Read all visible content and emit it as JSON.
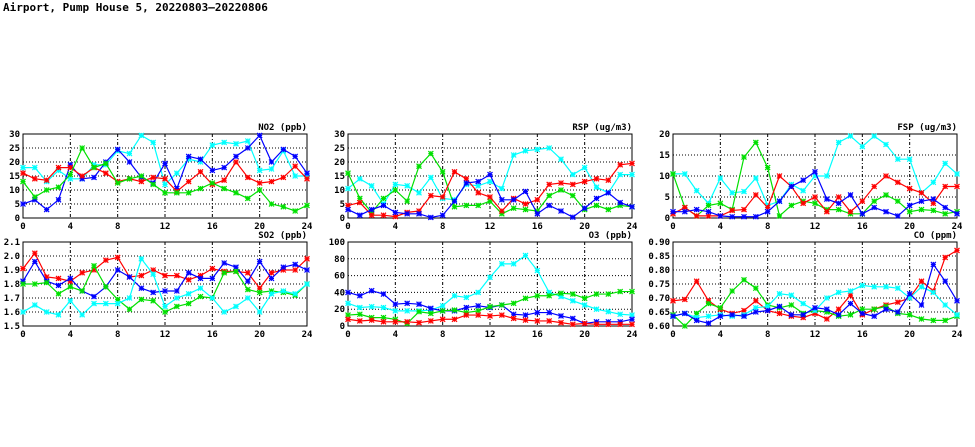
{
  "page_title": "Airport, Pump House 5, 20220803–20220806",
  "colors": {
    "red": "#ff0000",
    "green": "#00e000",
    "blue": "#0000ff",
    "cyan": "#00ffff"
  },
  "chart_data": [
    {
      "type": "line",
      "title": "NO2 (ppb)",
      "xlim": [
        0,
        24
      ],
      "xticks": [
        "0",
        "4",
        "8",
        "12",
        "16",
        "20",
        "24"
      ],
      "ylim": [
        0,
        30
      ],
      "yticks": [
        "0",
        "5",
        "10",
        "15",
        "20",
        "25",
        "30"
      ],
      "grid": true,
      "x": [
        0,
        1,
        2,
        3,
        4,
        5,
        6,
        7,
        8,
        9,
        10,
        11,
        12,
        13,
        14,
        15,
        16,
        17,
        18,
        19,
        20,
        21,
        22,
        23,
        24
      ],
      "series": [
        {
          "name": "cyan",
          "values": [
            18,
            18,
            13,
            17,
            14,
            14,
            19,
            19,
            24,
            23,
            29.5,
            27,
            12,
            16,
            21,
            20,
            26,
            27,
            26.5,
            27.5,
            17,
            17.5,
            24,
            15,
            15
          ]
        },
        {
          "name": "blue",
          "values": [
            5,
            6.5,
            3,
            6.5,
            19,
            14,
            14.5,
            20,
            24.5,
            20,
            14.5,
            12.5,
            19.5,
            10.5,
            22,
            21,
            17,
            18,
            22,
            25,
            29.5,
            20,
            24.5,
            22,
            16
          ]
        },
        {
          "name": "red",
          "values": [
            16,
            14,
            13.5,
            18,
            18,
            15,
            18,
            16,
            13,
            14,
            13,
            14.5,
            14,
            9.5,
            13,
            16.5,
            12,
            13.5,
            20,
            14.5,
            12.5,
            13,
            14.5,
            18.5,
            14
          ]
        },
        {
          "name": "green",
          "values": [
            13,
            7.5,
            10,
            11,
            15.5,
            25,
            18,
            19.5,
            12.5,
            14,
            15,
            12,
            9,
            9,
            9,
            10.5,
            12.5,
            10.5,
            9,
            7,
            10,
            5,
            4,
            2.5,
            4.5
          ]
        }
      ]
    },
    {
      "type": "line",
      "title": "RSP (ug/m3)",
      "xlim": [
        0,
        24
      ],
      "xticks": [
        "0",
        "4",
        "8",
        "12",
        "16",
        "20",
        "24"
      ],
      "ylim": [
        0,
        30
      ],
      "yticks": [
        "0",
        "5",
        "10",
        "15",
        "20",
        "25",
        "30"
      ],
      "grid": true,
      "x": [
        0,
        1,
        2,
        3,
        4,
        5,
        6,
        7,
        8,
        9,
        10,
        11,
        12,
        13,
        14,
        15,
        16,
        17,
        18,
        19,
        20,
        21,
        22,
        23,
        24
      ],
      "series": [
        {
          "name": "cyan",
          "values": [
            10.5,
            14,
            11.5,
            5,
            12,
            11.5,
            9,
            14.5,
            7,
            6.5,
            12,
            11.5,
            13,
            10.5,
            22.5,
            24,
            24.5,
            25,
            21,
            15.5,
            18,
            11,
            9,
            15.5,
            15.5
          ]
        },
        {
          "name": "green",
          "values": [
            16,
            7,
            2,
            7,
            10,
            6,
            18.5,
            23,
            16.5,
            4,
            4.5,
            4.5,
            6,
            1.5,
            3.5,
            3,
            2.5,
            8,
            10,
            8,
            3,
            4.5,
            3,
            4.5,
            4
          ]
        },
        {
          "name": "red",
          "values": [
            4.5,
            5.5,
            1,
            1,
            0.5,
            2,
            2.5,
            8,
            7.5,
            16.5,
            14,
            9,
            7.5,
            2.5,
            7,
            5,
            6.5,
            12,
            12.5,
            12,
            13,
            14,
            13.5,
            19,
            19.5
          ]
        },
        {
          "name": "blue",
          "values": [
            3,
            1,
            3,
            4.5,
            2,
            1.5,
            1.5,
            0.2,
            1,
            6,
            12.5,
            13,
            15.5,
            6.5,
            6.5,
            9.5,
            1.5,
            4.5,
            2.5,
            0.3,
            3.5,
            7,
            9,
            5.5,
            4
          ]
        }
      ]
    },
    {
      "type": "line",
      "title": "FSP (ug/m3)",
      "xlim": [
        0,
        24
      ],
      "xticks": [
        "0",
        "4",
        "8",
        "12",
        "16",
        "20",
        "24"
      ],
      "ylim": [
        0,
        20
      ],
      "yticks": [
        "0",
        "5",
        "10",
        "15",
        "20"
      ],
      "grid": true,
      "x": [
        0,
        1,
        2,
        3,
        4,
        5,
        6,
        7,
        8,
        9,
        10,
        11,
        12,
        13,
        14,
        15,
        16,
        17,
        18,
        19,
        20,
        21,
        22,
        23,
        24
      ],
      "series": [
        {
          "name": "cyan",
          "values": [
            10.5,
            10.5,
            6.5,
            3.5,
            9.5,
            6,
            6.3,
            9.5,
            3,
            4,
            8,
            6.5,
            10,
            10,
            18,
            19.5,
            17,
            19.5,
            17.5,
            14,
            14,
            6,
            8.5,
            13,
            10.5
          ]
        },
        {
          "name": "green",
          "values": [
            10.5,
            2.5,
            0.5,
            3,
            3.5,
            2,
            14.5,
            18,
            12,
            0.5,
            3,
            4,
            3.5,
            2,
            2,
            1,
            1,
            4,
            5.5,
            4,
            1.5,
            2,
            1.8,
            1,
            1.5
          ]
        },
        {
          "name": "red",
          "values": [
            1,
            2.5,
            0.5,
            0.5,
            0.5,
            1.8,
            2,
            5.5,
            2.5,
            10,
            7.5,
            3.5,
            5,
            1.5,
            5,
            1.5,
            4,
            7.5,
            10,
            8.5,
            7,
            6,
            3.5,
            7.5,
            7.5
          ]
        },
        {
          "name": "blue",
          "values": [
            1.5,
            1.5,
            2,
            1.5,
            0.5,
            0.3,
            0.3,
            0.3,
            1.5,
            4,
            7.5,
            9,
            11,
            4.5,
            3.5,
            5.5,
            1,
            2.5,
            1.5,
            0.5,
            3,
            4,
            4.5,
            2.5,
            1
          ]
        }
      ]
    },
    {
      "type": "line",
      "title": "SO2 (ppb)",
      "xlim": [
        0,
        24
      ],
      "xticks": [
        "0",
        "4",
        "8",
        "12",
        "16",
        "20",
        "24"
      ],
      "ylim": [
        1.5,
        2.1
      ],
      "yticks": [
        "1.5",
        "1.6",
        "1.7",
        "1.8",
        "1.9",
        "2.0",
        "2.1"
      ],
      "grid": true,
      "x": [
        0,
        1,
        2,
        3,
        4,
        5,
        6,
        7,
        8,
        9,
        10,
        11,
        12,
        13,
        14,
        15,
        16,
        17,
        18,
        19,
        20,
        21,
        22,
        23,
        24
      ],
      "series": [
        {
          "name": "red",
          "values": [
            1.91,
            2.02,
            1.85,
            1.84,
            1.82,
            1.88,
            1.9,
            1.97,
            1.99,
            1.85,
            1.86,
            1.9,
            1.86,
            1.86,
            1.83,
            1.86,
            1.91,
            1.89,
            1.89,
            1.88,
            1.77,
            1.88,
            1.9,
            1.9,
            1.98
          ]
        },
        {
          "name": "blue",
          "values": [
            1.82,
            1.96,
            1.82,
            1.79,
            1.84,
            1.75,
            1.71,
            1.78,
            1.9,
            1.85,
            1.77,
            1.74,
            1.75,
            1.75,
            1.88,
            1.84,
            1.84,
            1.95,
            1.92,
            1.82,
            1.96,
            1.84,
            1.92,
            1.94,
            1.9
          ]
        },
        {
          "name": "green",
          "values": [
            1.8,
            1.8,
            1.81,
            1.73,
            1.78,
            1.75,
            1.93,
            1.78,
            1.69,
            1.62,
            1.69,
            1.68,
            1.6,
            1.64,
            1.66,
            1.71,
            1.7,
            1.88,
            1.89,
            1.76,
            1.74,
            1.75,
            1.74,
            1.72,
            1.8
          ]
        },
        {
          "name": "cyan",
          "values": [
            1.6,
            1.65,
            1.6,
            1.58,
            1.68,
            1.58,
            1.66,
            1.66,
            1.66,
            1.7,
            1.98,
            1.87,
            1.64,
            1.7,
            1.73,
            1.77,
            1.7,
            1.6,
            1.64,
            1.7,
            1.6,
            1.73,
            1.75,
            1.73,
            1.8
          ]
        }
      ]
    },
    {
      "type": "line",
      "title": "O3 (ppb)",
      "xlim": [
        0,
        24
      ],
      "xticks": [
        "0",
        "4",
        "8",
        "12",
        "16",
        "20",
        "24"
      ],
      "ylim": [
        0,
        100
      ],
      "yticks": [
        "0",
        "20",
        "40",
        "60",
        "80",
        "100"
      ],
      "grid": true,
      "x": [
        0,
        1,
        2,
        3,
        4,
        5,
        6,
        7,
        8,
        9,
        10,
        11,
        12,
        13,
        14,
        15,
        16,
        17,
        18,
        19,
        20,
        21,
        22,
        23,
        24
      ],
      "series": [
        {
          "name": "cyan",
          "values": [
            27,
            22,
            23,
            22,
            18,
            18,
            18,
            19,
            24,
            36,
            34,
            40,
            58,
            74,
            74,
            84,
            66,
            40,
            35,
            30,
            25,
            20,
            17,
            14,
            13
          ]
        },
        {
          "name": "blue",
          "values": [
            40,
            36,
            42,
            38,
            26,
            27,
            26,
            21,
            18,
            18,
            22,
            24,
            22,
            25,
            14,
            13,
            16,
            16,
            12,
            9,
            3,
            5,
            5,
            5,
            8
          ]
        },
        {
          "name": "green",
          "values": [
            13,
            14,
            10,
            10,
            8,
            3,
            17,
            15,
            18,
            19,
            16,
            18,
            23,
            25,
            27,
            33,
            36,
            36,
            39,
            38,
            33,
            38,
            38,
            41,
            41
          ]
        },
        {
          "name": "red",
          "values": [
            8,
            6,
            7,
            5,
            5,
            5,
            4,
            6,
            8,
            8,
            13,
            13,
            12,
            13,
            9,
            7,
            6,
            6,
            4,
            2,
            3,
            2,
            2,
            2,
            2
          ]
        }
      ]
    },
    {
      "type": "line",
      "title": "CO (ppm)",
      "xlim": [
        0,
        24
      ],
      "xticks": [
        "0",
        "4",
        "8",
        "12",
        "16",
        "20",
        "24"
      ],
      "ylim": [
        0.6,
        0.9
      ],
      "yticks": [
        "0.60",
        "0.65",
        "0.70",
        "0.75",
        "0.80",
        "0.85",
        "0.90"
      ],
      "grid": true,
      "x": [
        0,
        1,
        2,
        3,
        4,
        5,
        6,
        7,
        8,
        9,
        10,
        11,
        12,
        13,
        14,
        15,
        16,
        17,
        18,
        19,
        20,
        21,
        22,
        23,
        24
      ],
      "series": [
        {
          "name": "red",
          "values": [
            0.69,
            0.695,
            0.76,
            0.69,
            0.66,
            0.645,
            0.655,
            0.69,
            0.655,
            0.645,
            0.635,
            0.63,
            0.645,
            0.625,
            0.66,
            0.71,
            0.64,
            0.66,
            0.675,
            0.685,
            0.7,
            0.76,
            0.725,
            0.845,
            0.87
          ]
        },
        {
          "name": "green",
          "values": [
            0.64,
            0.6,
            0.645,
            0.68,
            0.665,
            0.725,
            0.765,
            0.735,
            0.675,
            0.665,
            0.675,
            0.645,
            0.655,
            0.65,
            0.635,
            0.64,
            0.66,
            0.66,
            0.67,
            0.645,
            0.64,
            0.625,
            0.62,
            0.62,
            0.635
          ]
        },
        {
          "name": "cyan",
          "values": [
            0.635,
            0.645,
            0.63,
            0.635,
            0.64,
            0.635,
            0.64,
            0.665,
            0.67,
            0.715,
            0.71,
            0.68,
            0.655,
            0.7,
            0.72,
            0.725,
            0.745,
            0.74,
            0.74,
            0.735,
            0.7,
            0.74,
            0.72,
            0.675,
            0.64
          ]
        },
        {
          "name": "blue",
          "values": [
            0.635,
            0.645,
            0.62,
            0.61,
            0.635,
            0.64,
            0.635,
            0.65,
            0.655,
            0.67,
            0.64,
            0.64,
            0.665,
            0.66,
            0.64,
            0.68,
            0.645,
            0.635,
            0.66,
            0.65,
            0.715,
            0.675,
            0.82,
            0.76,
            0.69
          ]
        }
      ]
    }
  ]
}
